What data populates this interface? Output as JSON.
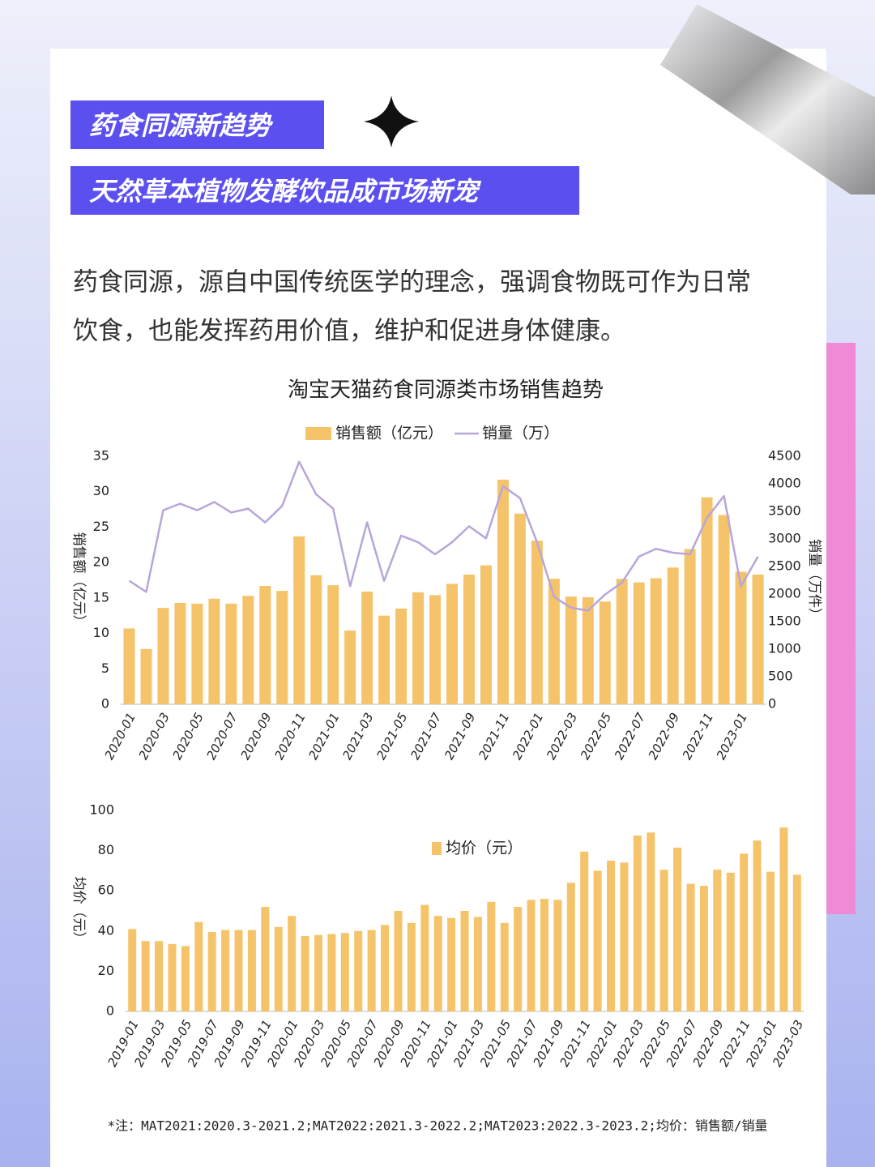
{
  "header": {
    "tag": "药食同源新趋势",
    "title": "天然草本植物发酵饮品成市场新宠"
  },
  "paragraph": [
    "药食同源，源自中国传统医学的理念，强调食物既可作为日常",
    "饮食，也能发挥药用价值，维护和促进身体健康。"
  ],
  "chart_data": [
    {
      "type": "bar",
      "title": "淘宝天猫药食同源类市场销售趋势",
      "ylabel": "销售额（亿元）",
      "y2label": "销量（万件）",
      "categories": [
        "2020-01",
        null,
        "2020-03",
        null,
        "2020-05",
        null,
        "2020-07",
        null,
        "2020-09",
        null,
        "2020-11",
        null,
        "2021-01",
        null,
        "2021-03",
        null,
        "2021-05",
        null,
        "2021-07",
        null,
        "2021-09",
        null,
        "2021-11",
        null,
        "2022-01",
        null,
        "2022-03",
        null,
        "2022-05",
        null,
        "2022-07",
        null,
        "2022-09",
        null,
        "2022-11",
        null,
        "2023-01",
        null
      ],
      "series": [
        {
          "name": "销售额（亿元）",
          "color": "#f5c46a",
          "type": "bar",
          "values": [
            10.7,
            7.8,
            13.6,
            14.3,
            14.2,
            14.9,
            14.2,
            15.3,
            16.7,
            16.0,
            23.7,
            18.2,
            16.8,
            10.4,
            15.9,
            12.5,
            13.5,
            15.8,
            15.4,
            17.0,
            18.3,
            19.6,
            31.7,
            26.9,
            23.1,
            17.7,
            15.2,
            15.1,
            14.5,
            17.7,
            17.2,
            17.8,
            19.3,
            21.9,
            29.2,
            26.7,
            18.7,
            18.3
          ]
        },
        {
          "name": "销量（万）",
          "color": "#b8a6d9",
          "type": "line",
          "axis": "y2",
          "values": [
            2240,
            2040,
            3520,
            3640,
            3520,
            3670,
            3480,
            3550,
            3300,
            3600,
            4400,
            3810,
            3550,
            2140,
            3300,
            2240,
            3060,
            2940,
            2720,
            2940,
            3230,
            3010,
            3960,
            3740,
            2940,
            1950,
            1750,
            1700,
            1990,
            2210,
            2680,
            2820,
            2750,
            2720,
            3380,
            3780,
            2140,
            2680
          ]
        }
      ],
      "ylim": [
        0,
        35
      ],
      "yticks": [
        0,
        5,
        10,
        15,
        20,
        25,
        30,
        35
      ],
      "y2lim": [
        0,
        4500
      ],
      "y2ticks": [
        0,
        500,
        1000,
        1500,
        2000,
        2500,
        3000,
        3500,
        4000,
        4500
      ],
      "legend": "top"
    },
    {
      "type": "bar",
      "ylabel": "均价（元）",
      "categories": [
        "2019-01",
        null,
        "2019-03",
        null,
        "2019-05",
        null,
        "2019-07",
        null,
        "2019-09",
        null,
        "2019-11",
        null,
        "2020-01",
        null,
        "2020-03",
        null,
        "2020-05",
        null,
        "2020-07",
        null,
        "2020-09",
        null,
        "2020-11",
        null,
        "2021-01",
        null,
        "2021-03",
        null,
        "2021-05",
        null,
        "2021-07",
        null,
        "2021-09",
        null,
        "2021-11",
        null,
        "2022-01",
        null,
        "2022-03",
        null,
        "2022-05",
        null,
        "2022-07",
        null,
        "2022-09",
        null,
        "2022-11",
        null,
        "2023-01",
        null,
        "2023-03"
      ],
      "series": [
        {
          "name": "均价（元）",
          "color": "#f5c46a",
          "values": [
            41,
            35,
            35,
            33.5,
            32.5,
            44.5,
            39.5,
            40.5,
            40.5,
            40.5,
            52,
            42,
            47.5,
            37.5,
            38,
            38.5,
            39,
            40,
            40.5,
            43,
            50,
            44,
            53,
            47.5,
            46.5,
            50,
            47,
            54.5,
            44,
            52,
            55.5,
            56,
            55.5,
            64,
            79.5,
            70,
            75,
            74,
            87.5,
            89,
            70.5,
            81.5,
            63.5,
            62.5,
            70.5,
            69,
            78.5,
            85,
            69.5,
            91.5,
            68
          ]
        }
      ],
      "ylim": [
        0,
        100
      ],
      "yticks": [
        0,
        20,
        40,
        60,
        80,
        100
      ],
      "legend": "top"
    }
  ],
  "note": "*注：MAT2021:2020.3-2021.2;MAT2022:2021.3-2022.2;MAT2023:2022.3-2023.2;均价：销售额/销量"
}
